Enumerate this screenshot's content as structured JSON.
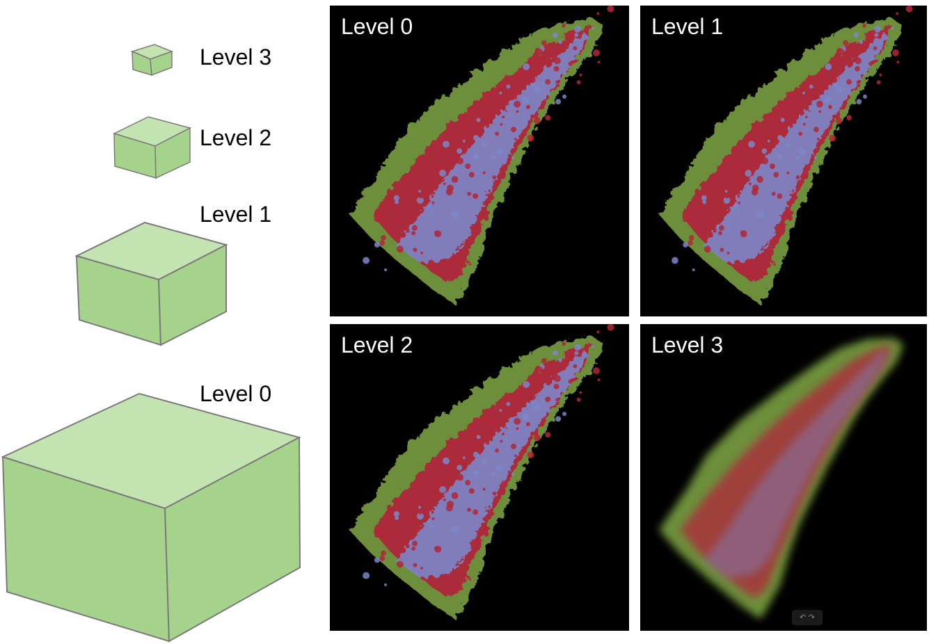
{
  "cubes": [
    {
      "label": "Level 3"
    },
    {
      "label": "Level 2"
    },
    {
      "label": "Level 1"
    },
    {
      "label": "Level 0"
    }
  ],
  "panels": [
    {
      "label": "Level 0",
      "detail": "full"
    },
    {
      "label": "Level 1",
      "detail": "full"
    },
    {
      "label": "Level 2",
      "detail": "full"
    },
    {
      "label": "Level 3",
      "detail": "coarse"
    }
  ],
  "colors": {
    "cube_front": "#a6d38c",
    "cube_top": "#c3e3b0",
    "cube_edge": "#7a7a7a",
    "iso_outer": "#6d8f3a",
    "iso_mid": "#b0283a",
    "iso_core": "#7b86c8",
    "panel_bg": "#000000"
  },
  "viewer": {
    "nav_glyphs": "↶ ↷"
  }
}
